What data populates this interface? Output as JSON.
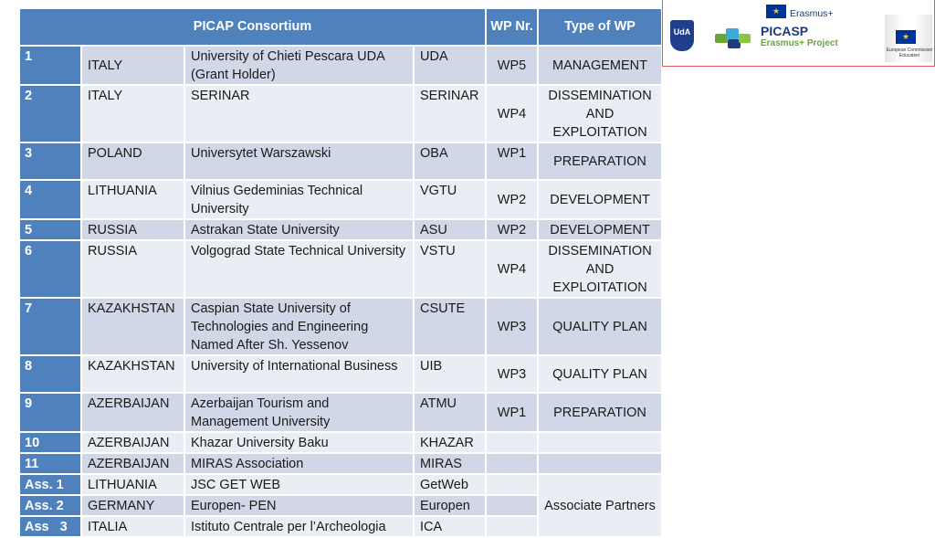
{
  "header": {
    "consortium": "PICAP Consortium",
    "wp_nr": "WP Nr.",
    "type_of_wp": "Type of WP"
  },
  "rows": [
    {
      "num": "1",
      "country": "ITALY",
      "institution": "University of Chieti Pescara UDA (Grant Holder)",
      "code": "UDA",
      "wp": "WP5",
      "type": "MANAGEMENT"
    },
    {
      "num": "2",
      "country": "ITALY",
      "institution": "SERINAR",
      "code": "SERINAR",
      "wp": "WP4",
      "type": "DISSEMINATION AND EXPLOITATION"
    },
    {
      "num": "3",
      "country": "POLAND",
      "institution": "Universytet Warszawski",
      "code": "OBA",
      "wp": "WP1",
      "type": "PREPARATION"
    },
    {
      "num": "4",
      "country": "LITHUANIA",
      "institution": "Vilnius Gedeminias Technical University",
      "code": "VGTU",
      "wp": "WP2",
      "type": "DEVELOPMENT"
    },
    {
      "num": "5",
      "country": "RUSSIA",
      "institution": "Astrakan State University",
      "code": "ASU",
      "wp": "WP2",
      "type": "DEVELOPMENT"
    },
    {
      "num": "6",
      "country": "RUSSIA",
      "institution": "Volgograd State Technical University",
      "code": "VSTU",
      "wp": "WP4",
      "type": "DISSEMINATION AND EXPLOITATION"
    },
    {
      "num": "7",
      "country": "KAZAKHSTAN",
      "institution": "Caspian State University of Technologies and Engineering Named After Sh. Yessenov",
      "code": "CSUTE",
      "wp": "WP3",
      "type": "QUALITY PLAN"
    },
    {
      "num": "8",
      "country": "KAZAKHSTAN",
      "institution": "University of International Business",
      "code": "UIB",
      "wp": "WP3",
      "type": "QUALITY PLAN"
    },
    {
      "num": "9",
      "country": "AZERBAIJAN",
      "institution": "Azerbaijan Tourism and Management University",
      "code": "ATMU",
      "wp": "WP1",
      "type": "PREPARATION"
    },
    {
      "num": "10",
      "country": "AZERBAIJAN",
      "institution": "Khazar University Baku",
      "code": "KHAZAR",
      "wp": "",
      "type": ""
    },
    {
      "num": "11",
      "country": "AZERBAIJAN",
      "institution": "MIRAS Association",
      "code": "MIRAS",
      "wp": "",
      "type": ""
    },
    {
      "num": "Ass. 1",
      "country": "LITHUANIA",
      "institution": "JSC GET WEB",
      "code": "GetWeb",
      "wp": ""
    },
    {
      "num": "Ass. 2",
      "country": "GERMANY",
      "institution": "Europen- PEN",
      "code": "Europen",
      "wp": ""
    },
    {
      "num": "Ass   3",
      "country": "ITALIA",
      "institution": "Istituto Centrale per l’Archeologia",
      "code": "ICA",
      "wp": ""
    }
  ],
  "associate_type": "Associate Partners",
  "logos": {
    "erasmus_label": "Erasmus+",
    "uda_text": "UdA",
    "picasp_title": "PICASP",
    "picasp_subtitle": "Erasmus+ Project",
    "ec_label": "European Commission Education",
    "brand_blue": "#4f81bd",
    "row_light": "#e9edf4",
    "row_dark": "#d0d8e8",
    "eu_blue": "#003399"
  }
}
